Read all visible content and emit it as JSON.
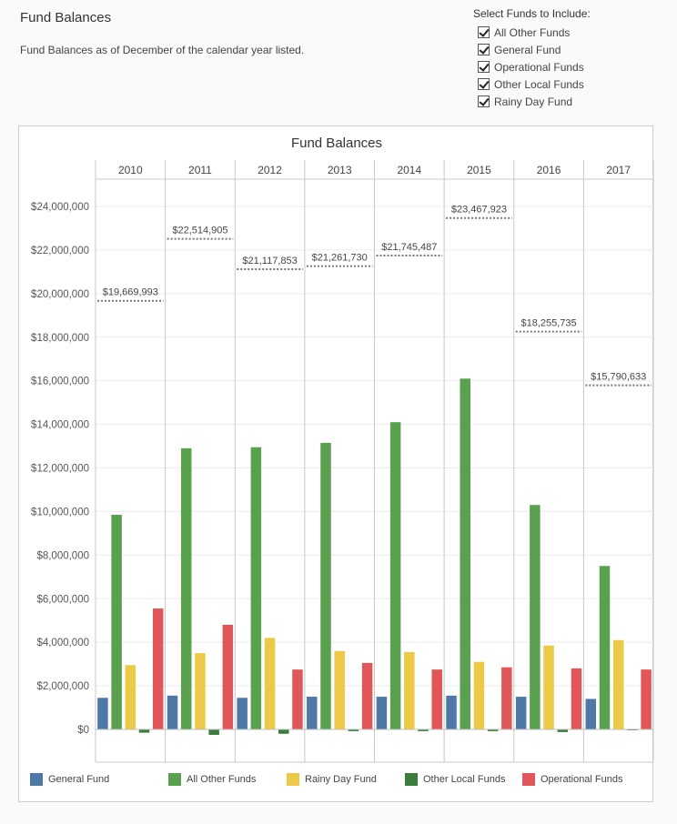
{
  "page": {
    "title": "Fund Balances",
    "subtitle": "Fund Balances as of December of the calendar year listed."
  },
  "filter": {
    "title": "Select Funds to Include:",
    "items": [
      {
        "label": "All Other Funds",
        "checked": true
      },
      {
        "label": "General Fund",
        "checked": true
      },
      {
        "label": "Operational Funds",
        "checked": true
      },
      {
        "label": "Other Local Funds",
        "checked": true
      },
      {
        "label": "Rainy Day Fund",
        "checked": true
      }
    ]
  },
  "chart_data": {
    "type": "bar",
    "title": "Fund Balances",
    "categories": [
      "2010",
      "2011",
      "2012",
      "2013",
      "2014",
      "2015",
      "2016",
      "2017"
    ],
    "series": [
      {
        "name": "General Fund",
        "color": "#4e79a7",
        "values": [
          1450000,
          1550000,
          1450000,
          1500000,
          1500000,
          1550000,
          1500000,
          1400000
        ]
      },
      {
        "name": "All Other Funds",
        "color": "#59a14f",
        "values": [
          9850000,
          12900000,
          12950000,
          13150000,
          14100000,
          16100000,
          10300000,
          7500000
        ]
      },
      {
        "name": "Rainy Day Fund",
        "color": "#edc948",
        "values": [
          2950000,
          3500000,
          4200000,
          3600000,
          3550000,
          3100000,
          3850000,
          4100000
        ]
      },
      {
        "name": "Other Local Funds",
        "color": "#3b7d3b",
        "values": [
          -150000,
          -250000,
          -200000,
          -80000,
          -80000,
          -80000,
          -120000,
          -30000
        ]
      },
      {
        "name": "Operational Funds",
        "color": "#e15759",
        "values": [
          5550000,
          4800000,
          2750000,
          3050000,
          2750000,
          2850000,
          2800000,
          2750000
        ]
      }
    ],
    "totals": [
      19669993,
      22514905,
      21117853,
      21261730,
      21745487,
      23467923,
      18255735,
      15790633
    ],
    "total_labels": [
      "$19,669,993",
      "$22,514,905",
      "$21,117,853",
      "$21,261,730",
      "$21,745,487",
      "$23,467,923",
      "$18,255,735",
      "$15,790,633"
    ],
    "ylim": [
      -1500000,
      25500000
    ],
    "yticks": [
      0,
      2000000,
      4000000,
      6000000,
      8000000,
      10000000,
      12000000,
      14000000,
      16000000,
      18000000,
      20000000,
      22000000,
      24000000
    ],
    "ytick_labels": [
      "$0",
      "$2,000,000",
      "$4,000,000",
      "$6,000,000",
      "$8,000,000",
      "$10,000,000",
      "$12,000,000",
      "$14,000,000",
      "$16,000,000",
      "$18,000,000",
      "$20,000,000",
      "$22,000,000",
      "$24,000,000"
    ],
    "xlabel": "",
    "ylabel": "",
    "grid": true,
    "legend": "bottom"
  }
}
